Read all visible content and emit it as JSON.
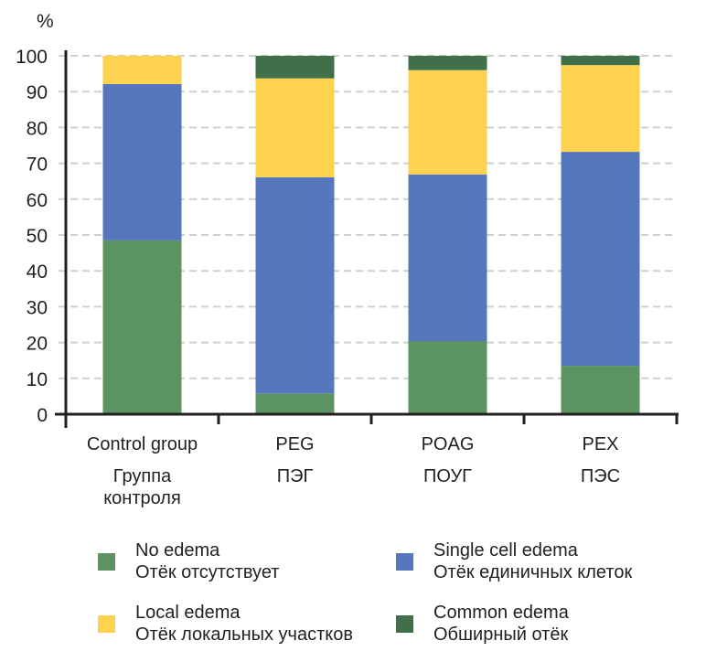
{
  "chart_data": {
    "type": "bar",
    "stacked": true,
    "title": "",
    "ylabel": "%",
    "xlabel": "",
    "ylim": [
      0,
      100
    ],
    "yticks": [
      0,
      10,
      20,
      30,
      40,
      50,
      60,
      70,
      80,
      90,
      100
    ],
    "grid": true,
    "categories": [
      {
        "en": "Control group",
        "ru": [
          "Группа",
          "контроля"
        ]
      },
      {
        "en": "PEG",
        "ru": [
          "ПЭГ"
        ]
      },
      {
        "en": "POAG",
        "ru": [
          "ПОУГ"
        ]
      },
      {
        "en": "PEX",
        "ru": [
          "ПЭС"
        ]
      }
    ],
    "series": [
      {
        "name": "No edema",
        "name_ru": "Отёк отсутствует",
        "color": "#5b9362",
        "values": [
          48.5,
          5.8,
          20.4,
          13.5
        ]
      },
      {
        "name": "Single cell edema",
        "name_ru": "Отёк единичных клеток",
        "color": "#5677bd",
        "values": [
          43.6,
          60.3,
          46.5,
          59.7
        ]
      },
      {
        "name": "Local edema",
        "name_ru": "Отёк локальных участков",
        "color": "#fdd24e",
        "values": [
          7.9,
          27.6,
          29.1,
          24.2
        ]
      },
      {
        "name": "Common edema",
        "name_ru": "Обширный отёк",
        "color": "#40704a",
        "values": [
          0,
          6.3,
          4.0,
          2.6
        ]
      }
    ],
    "legend_position": "bottom"
  },
  "colors": {
    "axis": "#231f20",
    "grid": "#cfcfcf"
  }
}
